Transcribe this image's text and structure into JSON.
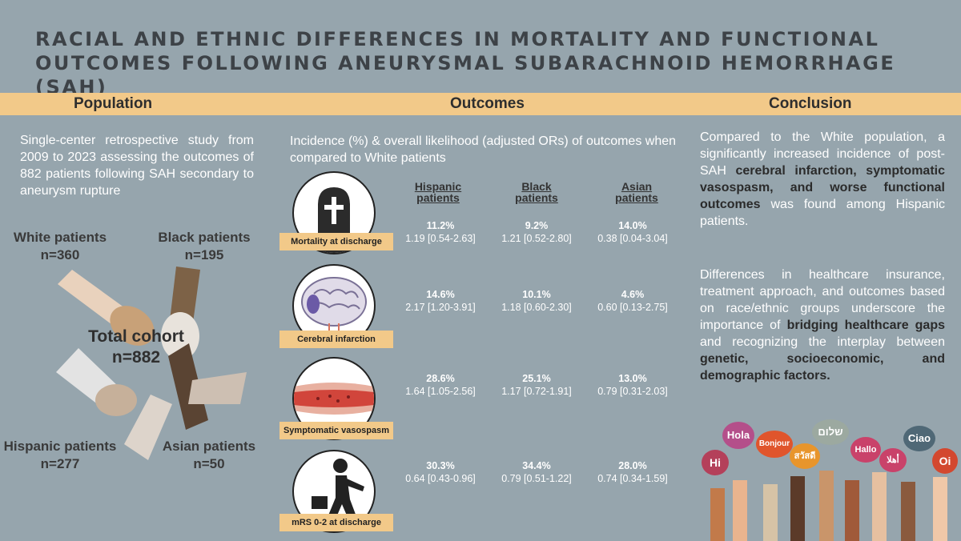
{
  "title": "RACIAL AND ETHNIC DIFFERENCES IN MORTALITY AND FUNCTIONAL OUTCOMES FOLLOWING ANEURYSMAL SUBARACHNOID HEMORRHAGE (SAH)",
  "sections": {
    "population": "Population",
    "outcomes": "Outcomes",
    "conclusion": "Conclusion"
  },
  "population": {
    "description": "Single-center retrospective study from 2009 to 2023 assessing the outcomes of 882 patients following SAH secondary to aneurysm rupture",
    "groups": [
      {
        "name": "White patients",
        "n": "n=360"
      },
      {
        "name": "Black patients",
        "n": "n=195"
      },
      {
        "name": "Hispanic patients",
        "n": "n=277"
      },
      {
        "name": "Asian patients",
        "n": "n=50"
      }
    ],
    "cohort_label": "Total cohort",
    "cohort_n": "n=882"
  },
  "outcomes": {
    "intro": "Incidence (%) & overall likelihood (adjusted ORs) of outcomes when compared to White patients",
    "columns": [
      {
        "l1": "Hispanic",
        "l2": "patients"
      },
      {
        "l1": "Black",
        "l2": "patients"
      },
      {
        "l1": "Asian",
        "l2": "patients"
      }
    ],
    "rows": [
      {
        "label": "Mortality at discharge",
        "icon": "tombstone-icon",
        "cells": [
          {
            "pct": "11.2%",
            "or": "1.19 [0.54-2.63]"
          },
          {
            "pct": "9.2%",
            "or": "1.21 [0.52-2.80]"
          },
          {
            "pct": "14.0%",
            "or": "0.38 [0.04-3.04]"
          }
        ]
      },
      {
        "label": "Cerebral infarction",
        "icon": "brain-icon",
        "cells": [
          {
            "pct": "14.6%",
            "or": "2.17 [1.20-3.91]"
          },
          {
            "pct": "10.1%",
            "or": "1.18 [0.60-2.30]"
          },
          {
            "pct": "4.6%",
            "or": "0.60 [0.13-2.75]"
          }
        ]
      },
      {
        "label": "Symptomatic vasospasm",
        "icon": "blood-vessel-icon",
        "cells": [
          {
            "pct": "28.6%",
            "or": "1.64 [1.05-2.56]"
          },
          {
            "pct": "25.1%",
            "or": "1.17 [0.72-1.91]"
          },
          {
            "pct": "13.0%",
            "or": "0.79 [0.31-2.03]"
          }
        ]
      },
      {
        "label": "mRS 0-2 at discharge",
        "icon": "walking-person-icon",
        "cells": [
          {
            "pct": "30.3%",
            "or": "0.64 [0.43-0.96]"
          },
          {
            "pct": "34.4%",
            "or": "0.79 [0.51-1.22]"
          },
          {
            "pct": "28.0%",
            "or": "0.74 [0.34-1.59]"
          }
        ]
      }
    ]
  },
  "conclusion": {
    "p1_a": "Compared to the White population, a significantly increased incidence of post-SAH ",
    "p1_b": "cerebral infarction, symptomatic vasospasm, and worse functional outcomes",
    "p1_c": " was found among Hispanic patients.",
    "p2_a": "Differences in healthcare insurance, treatment approach, and outcomes based on race/ethnic groups underscore the importance of ",
    "p2_b": "bridging healthcare gaps",
    "p2_c": " and recognizing the interplay between ",
    "p2_d": "genetic, socioeconomic, and demographic factors."
  },
  "greetings": [
    "Hola",
    "Bonjour",
    "שלום",
    "Hi",
    "สวัสดี",
    "Hallo",
    "Ciao",
    "أهلا",
    "Oi"
  ],
  "colors": {
    "background": "#96a5ad",
    "band": "#f2c989",
    "title": "#3d4247"
  }
}
